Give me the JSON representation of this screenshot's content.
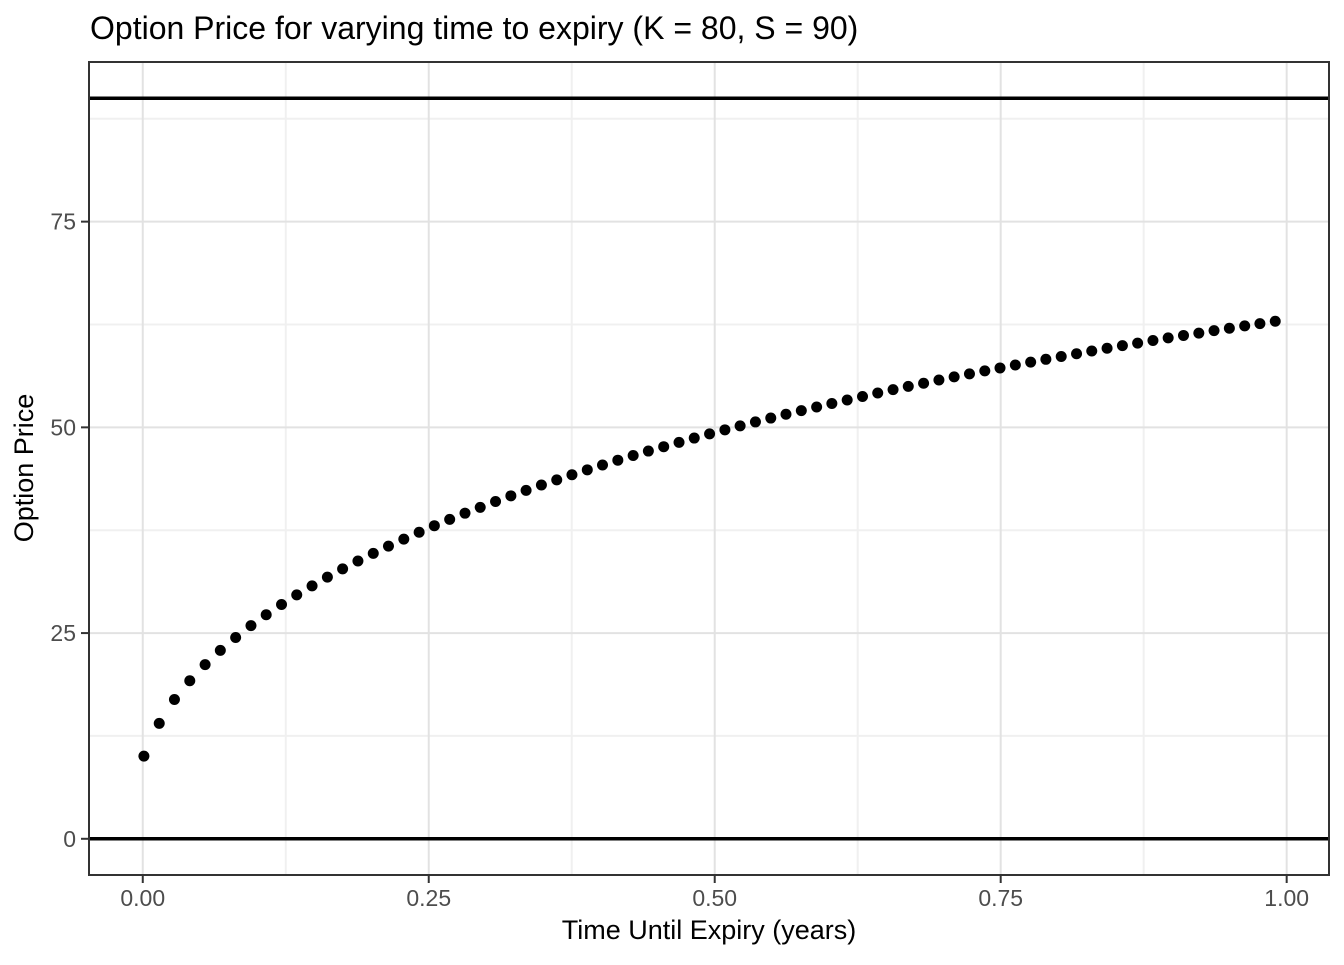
{
  "title": "Option Price for varying time to expiry (K = 80, S = 90)",
  "colors": {
    "background": "#ffffff",
    "panel_background": "#ffffff",
    "grid_major": "#e2e2e2",
    "grid_minor": "#f0f0f0",
    "panel_border": "#333333",
    "tick_mark": "#333333",
    "tick_label": "#4d4d4d",
    "axis_title": "#000000",
    "point": "#000000",
    "reference_line": "#000000"
  },
  "chart_data": {
    "type": "scatter",
    "title": "Option Price for varying time to expiry (K = 80, S = 90)",
    "xlabel": "Time Until Expiry (years)",
    "ylabel": "Option Price",
    "x_tick_labels": [
      "0.00",
      "0.25",
      "0.50",
      "0.75",
      "1.00"
    ],
    "x_tick_values": [
      0,
      0.25,
      0.5,
      0.75,
      1.0
    ],
    "y_tick_labels": [
      "0",
      "25",
      "50",
      "75"
    ],
    "y_tick_values": [
      0,
      25,
      50,
      75
    ],
    "x_minor_gridlines": [
      0.125,
      0.375,
      0.625,
      0.875
    ],
    "y_minor_gridlines": [
      12.5,
      37.5,
      62.5,
      87.5
    ],
    "xlim": [
      -0.047,
      1.037
    ],
    "ylim": [
      -4.4,
      94.4
    ],
    "grid": "major-and-minor",
    "legend": "none",
    "hlines": [
      0,
      90
    ],
    "series": [
      {
        "name": "option-price",
        "x": [
          0.001,
          0.0144,
          0.0277,
          0.0411,
          0.0545,
          0.0678,
          0.0812,
          0.0946,
          0.1079,
          0.1213,
          0.1346,
          0.148,
          0.1614,
          0.1747,
          0.1881,
          0.2015,
          0.2148,
          0.2282,
          0.2416,
          0.2549,
          0.2683,
          0.2817,
          0.295,
          0.3084,
          0.3218,
          0.3351,
          0.3485,
          0.3619,
          0.3752,
          0.3886,
          0.4019,
          0.4153,
          0.4287,
          0.442,
          0.4554,
          0.4688,
          0.4821,
          0.4955,
          0.5089,
          0.5222,
          0.5356,
          0.549,
          0.5623,
          0.5757,
          0.5891,
          0.6024,
          0.6158,
          0.6292,
          0.6425,
          0.6559,
          0.6692,
          0.6826,
          0.696,
          0.7093,
          0.7227,
          0.7361,
          0.7494,
          0.7628,
          0.7762,
          0.7895,
          0.8029,
          0.8163,
          0.8296,
          0.843,
          0.8564,
          0.8697,
          0.8831,
          0.8964,
          0.9098,
          0.9232,
          0.9365,
          0.9499,
          0.9633,
          0.9766,
          0.99
        ],
        "y": [
          10.05,
          14.03,
          16.93,
          19.21,
          21.17,
          22.9,
          24.46,
          25.9,
          27.23,
          28.47,
          29.64,
          30.74,
          31.8,
          32.8,
          33.76,
          34.68,
          35.57,
          36.42,
          37.25,
          38.05,
          38.82,
          39.57,
          40.28,
          40.99,
          41.68,
          42.34,
          42.99,
          43.62,
          44.24,
          44.84,
          45.43,
          46.01,
          46.58,
          47.12,
          47.65,
          48.18,
          48.7,
          49.21,
          49.7,
          50.18,
          50.66,
          51.13,
          51.59,
          52.03,
          52.47,
          52.9,
          53.33,
          53.75,
          54.17,
          54.58,
          54.98,
          55.36,
          55.75,
          56.13,
          56.5,
          56.86,
          57.22,
          57.58,
          57.93,
          58.27,
          58.61,
          58.95,
          59.28,
          59.61,
          59.93,
          60.24,
          60.55,
          60.87,
          61.17,
          61.45,
          61.76,
          62.04,
          62.33,
          62.61,
          62.89
        ]
      }
    ]
  }
}
